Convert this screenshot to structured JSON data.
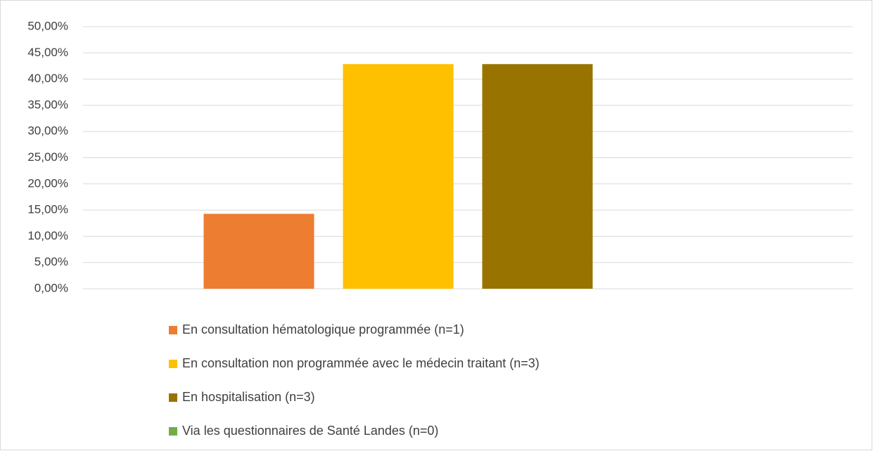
{
  "chart_data": {
    "type": "bar",
    "categories": [
      null
    ],
    "series": [
      {
        "name": "En consultation hématologique programmée (n=1)",
        "color": "#ed7d31",
        "values": [
          14.29
        ]
      },
      {
        "name": "En consultation non programmée avec le médecin traitant (n=3)",
        "color": "#ffc000",
        "values": [
          42.86
        ]
      },
      {
        "name": "En hospitalisation (n=3)",
        "color": "#997300",
        "values": [
          42.86
        ]
      },
      {
        "name": "Via les questionnaires de Santé Landes (n=0)",
        "color": "#70ad47",
        "values": [
          0
        ]
      }
    ],
    "ylim": [
      0,
      50
    ],
    "yticks": [
      {
        "value": 0,
        "label": "0,00%"
      },
      {
        "value": 5,
        "label": "5,00%"
      },
      {
        "value": 10,
        "label": "10,00%"
      },
      {
        "value": 15,
        "label": "15,00%"
      },
      {
        "value": 20,
        "label": "20,00%"
      },
      {
        "value": 25,
        "label": "25,00%"
      },
      {
        "value": 30,
        "label": "30,00%"
      },
      {
        "value": 35,
        "label": "35,00%"
      },
      {
        "value": 40,
        "label": "40,00%"
      },
      {
        "value": 45,
        "label": "45,00%"
      },
      {
        "value": 50,
        "label": "50,00%"
      }
    ],
    "grid": true,
    "legend": "bottom"
  }
}
